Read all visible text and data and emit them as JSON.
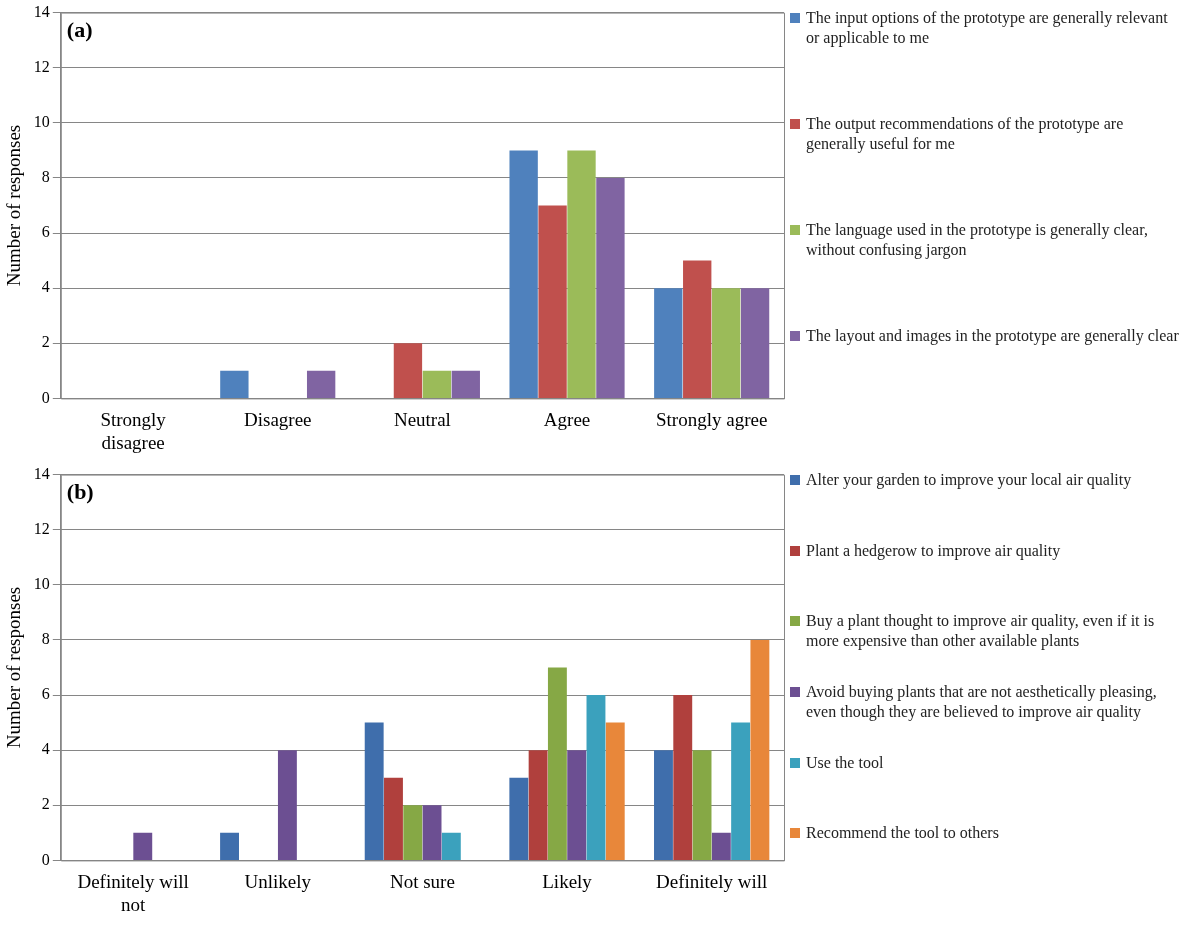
{
  "chart_data": [
    {
      "type": "bar",
      "title": "(a)",
      "ylabel": "Number of responses",
      "categories": [
        "Strongly disagree",
        "Disagree",
        "Neutral",
        "Agree",
        "Strongly agree"
      ],
      "ylim": [
        0,
        14
      ],
      "yticks": [
        0,
        2,
        4,
        6,
        8,
        10,
        12,
        14
      ],
      "grid": "y",
      "legend": "right",
      "series": [
        {
          "name": "The input options of the prototype are generally relevant or applicable to me",
          "color": "#4f81bd",
          "values": [
            0,
            1,
            0,
            9,
            4
          ]
        },
        {
          "name": "The output recommendations of the prototype are generally useful for me",
          "color": "#c0504d",
          "values": [
            0,
            0,
            2,
            7,
            5
          ]
        },
        {
          "name": "The language used in the prototype is generally clear, without confusing jargon",
          "color": "#9bbb59",
          "values": [
            0,
            0,
            1,
            9,
            4
          ]
        },
        {
          "name": "The layout and images in the prototype are generally clear",
          "color": "#8064a2",
          "values": [
            0,
            1,
            1,
            8,
            4
          ]
        }
      ]
    },
    {
      "type": "bar",
      "title": "(b)",
      "ylabel": "Number of responses",
      "categories": [
        "Definitely will not",
        "Unlikely",
        "Not sure",
        "Likely",
        "Definitely will"
      ],
      "ylim": [
        0,
        14
      ],
      "yticks": [
        0,
        2,
        4,
        6,
        8,
        10,
        12,
        14
      ],
      "grid": "y",
      "legend": "right",
      "series": [
        {
          "name": "Alter your garden to improve your local air quality",
          "color": "#3f6eac",
          "values": [
            0,
            1,
            5,
            3,
            4
          ]
        },
        {
          "name": "Plant a hedgerow to improve air quality",
          "color": "#b0403d",
          "values": [
            0,
            0,
            3,
            4,
            6
          ]
        },
        {
          "name": "Buy a plant thought to improve air quality, even if it is more expensive than other available plants",
          "color": "#86a845",
          "values": [
            0,
            0,
            2,
            7,
            4
          ]
        },
        {
          "name": "Avoid buying plants that are not aesthetically pleasing, even though they are believed to improve air quality",
          "color": "#6c4f92",
          "values": [
            1,
            4,
            2,
            4,
            1
          ]
        },
        {
          "name": "Use the tool",
          "color": "#3ba1bd",
          "values": [
            0,
            0,
            1,
            6,
            5
          ]
        },
        {
          "name": "Recommend the tool to others",
          "color": "#e8873a",
          "values": [
            0,
            0,
            0,
            5,
            8
          ]
        }
      ]
    }
  ]
}
